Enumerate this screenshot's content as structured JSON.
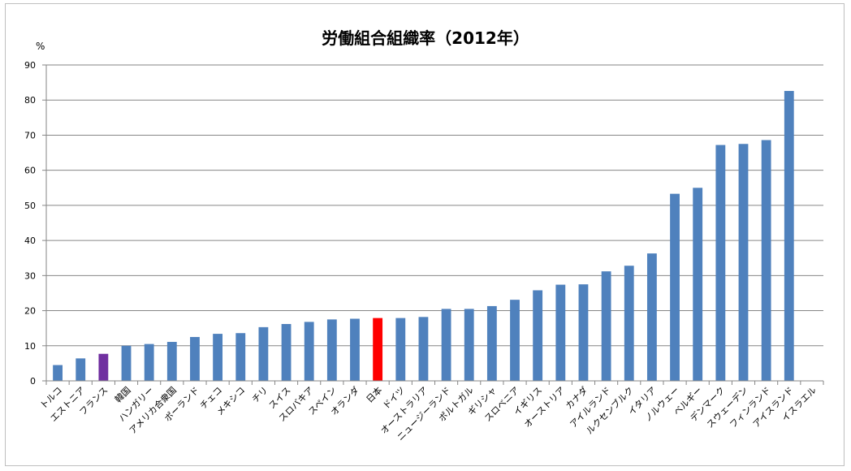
{
  "chart_data": {
    "type": "bar",
    "title": "労働組合組織率（2012年）",
    "y_unit_label": "%",
    "xlabel": "",
    "ylabel": "",
    "ylim": [
      0,
      90
    ],
    "y_ticks": [
      "0",
      "10",
      "20",
      "30",
      "40",
      "50",
      "60",
      "70",
      "80",
      "90"
    ],
    "grid": true,
    "legend": "none",
    "colors": {
      "default": "#4f81bd",
      "highlight_japan": "#ff0000",
      "highlight_france": "#7030a0",
      "gridline": "#868686",
      "axis": "#868686"
    },
    "categories": [
      "トルコ",
      "エストニア",
      "フランス",
      "韓国",
      "ハンガリー",
      "アメリカ合衆国",
      "ポーランド",
      "チェコ",
      "メキシコ",
      "チリ",
      "スイス",
      "スロバキア",
      "スペイン",
      "オランダ",
      "日本",
      "ドイツ",
      "オーストラリア",
      "ニュージーランド",
      "ポルトガル",
      "ギリシャ",
      "スロベニア",
      "イギリス",
      "オーストリア",
      "カナダ",
      "アイルランド",
      "ルクセンブルク",
      "イタリア",
      "ノルウェー",
      "ベルギー",
      "デンマーク",
      "スウェーデン",
      "フィンランド",
      "アイスランド",
      "イスラエル"
    ],
    "values": [
      4.5,
      6.4,
      7.7,
      10.0,
      10.5,
      11.1,
      12.5,
      13.4,
      13.6,
      15.3,
      16.2,
      16.8,
      17.5,
      17.7,
      17.9,
      17.9,
      18.2,
      20.5,
      20.5,
      21.3,
      23.1,
      25.8,
      27.4,
      27.5,
      31.2,
      32.8,
      36.3,
      53.3,
      55.0,
      67.2,
      67.5,
      68.6,
      82.6,
      null
    ],
    "bar_colors": [
      "default",
      "default",
      "highlight_france",
      "default",
      "default",
      "default",
      "default",
      "default",
      "default",
      "default",
      "default",
      "default",
      "default",
      "default",
      "highlight_japan",
      "default",
      "default",
      "default",
      "default",
      "default",
      "default",
      "default",
      "default",
      "default",
      "default",
      "default",
      "default",
      "default",
      "default",
      "default",
      "default",
      "default",
      "default",
      "default"
    ]
  }
}
